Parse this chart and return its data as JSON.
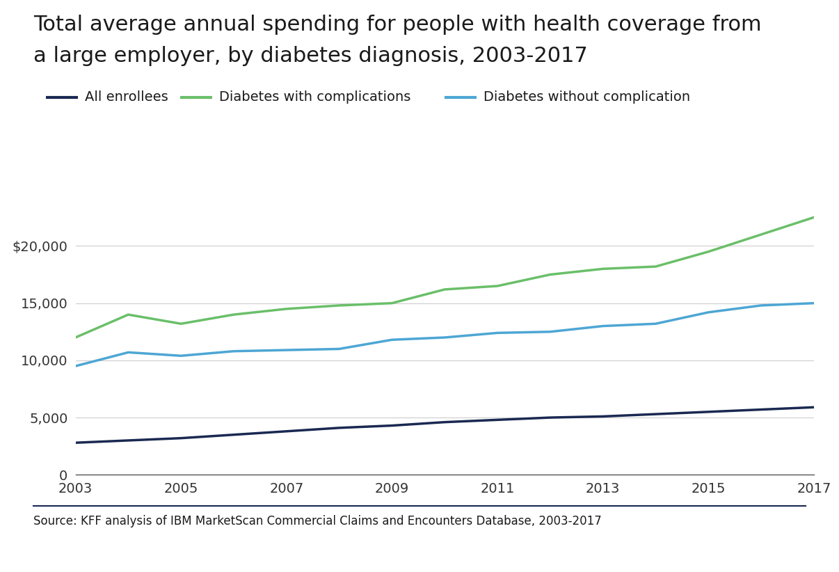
{
  "title_line1": "Total average annual spending for people with health coverage from",
  "title_line2": "a large employer, by diabetes diagnosis, 2003-2017",
  "source": "Source: KFF analysis of IBM MarketScan Commercial Claims and Encounters Database, 2003-2017",
  "years": [
    2003,
    2004,
    2005,
    2006,
    2007,
    2008,
    2009,
    2010,
    2011,
    2012,
    2013,
    2014,
    2015,
    2016,
    2017
  ],
  "all_enrollees": [
    2800,
    3000,
    3200,
    3500,
    3800,
    4100,
    4300,
    4600,
    4800,
    5000,
    5100,
    5300,
    5500,
    5700,
    5900
  ],
  "diabetes_with_comp": [
    12000,
    14000,
    13200,
    14000,
    14500,
    14800,
    15000,
    16200,
    16500,
    17500,
    18000,
    18200,
    19500,
    21000,
    22500
  ],
  "diabetes_without_comp": [
    9500,
    10700,
    10400,
    10800,
    10900,
    11000,
    11800,
    12000,
    12400,
    12500,
    13000,
    13200,
    14200,
    14800,
    15000
  ],
  "color_all_enrollees": "#1a2952",
  "color_with_comp": "#6abf69",
  "color_without_comp": "#4da6d4",
  "ylim": [
    0,
    25000
  ],
  "yticks": [
    0,
    5000,
    10000,
    15000,
    20000
  ],
  "ytick_labels": [
    "0",
    "5,000",
    "10,000",
    "15,000",
    "$20,000"
  ],
  "xticks": [
    2003,
    2005,
    2007,
    2009,
    2011,
    2013,
    2015,
    2017
  ],
  "line_width": 2.5,
  "title_fontsize": 22,
  "legend_fontsize": 14,
  "tick_fontsize": 14,
  "source_fontsize": 12,
  "background_color": "#ffffff",
  "separator_color": "#1a2952"
}
